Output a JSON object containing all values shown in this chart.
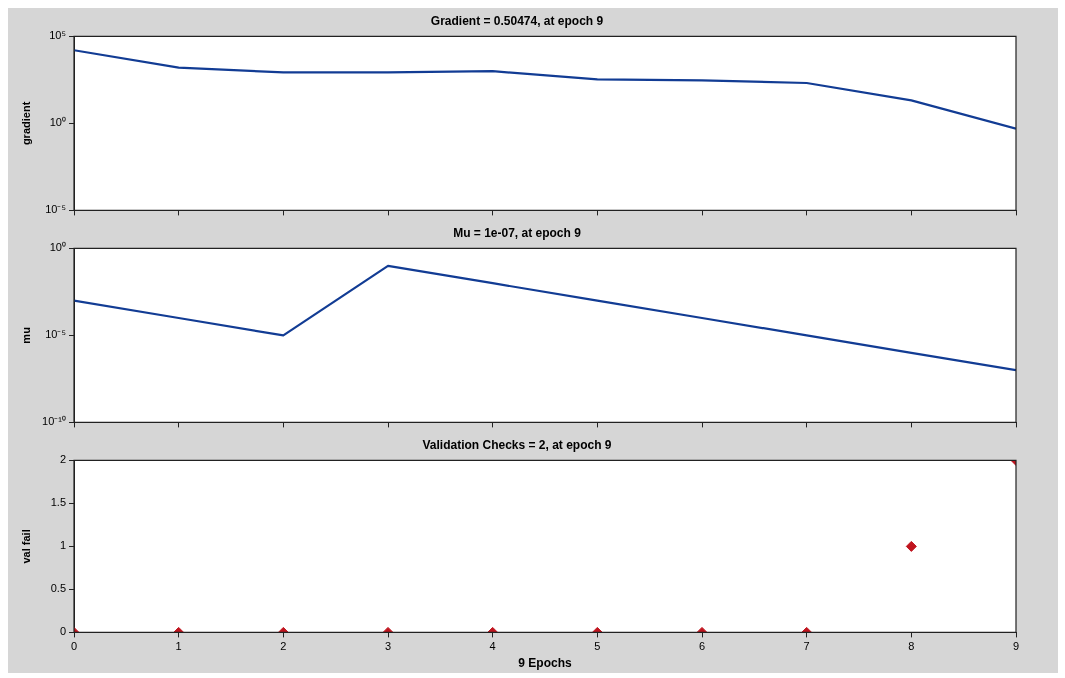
{
  "chart_data": [
    {
      "type": "line",
      "title": "Gradient = 0.50474, at epoch 9",
      "ylabel": "gradient",
      "x": [
        0,
        1,
        2,
        3,
        4,
        5,
        6,
        7,
        8,
        9
      ],
      "series": [
        {
          "color": "#123c94",
          "values": [
            16000,
            1600,
            850,
            850,
            1000,
            340,
            300,
            210,
            21,
            0.50474
          ]
        }
      ],
      "xlim": [
        0,
        9
      ],
      "xticks": [
        0,
        1,
        2,
        3,
        4,
        5,
        6,
        7,
        8,
        9
      ],
      "ylim": [
        1e-05,
        100000
      ],
      "yticks": [
        {
          "value": 1e-05,
          "label": "10⁻⁵"
        },
        {
          "value": 1,
          "label": "10⁰"
        },
        {
          "value": 100000,
          "label": "10⁵"
        }
      ],
      "log": true,
      "tick_labels": "y"
    },
    {
      "type": "line",
      "title": "Mu = 1e-07, at epoch 9",
      "ylabel": "mu",
      "x": [
        0,
        1,
        2,
        3,
        4,
        5,
        6,
        7,
        8,
        9
      ],
      "series": [
        {
          "color": "#123c94",
          "values": [
            0.001,
            0.0001,
            1e-05,
            0.1,
            0.01,
            0.001,
            0.0001,
            1e-05,
            1e-06,
            1e-07
          ]
        }
      ],
      "xlim": [
        0,
        9
      ],
      "xticks": [
        0,
        1,
        2,
        3,
        4,
        5,
        6,
        7,
        8,
        9
      ],
      "ylim": [
        1e-10,
        1
      ],
      "yticks": [
        {
          "value": 1e-10,
          "label": "10⁻¹⁰"
        },
        {
          "value": 1e-05,
          "label": "10⁻⁵"
        },
        {
          "value": 1,
          "label": "10⁰"
        }
      ],
      "log": true,
      "tick_labels": "y"
    },
    {
      "type": "scatter",
      "title": "Validation Checks = 2, at epoch 9",
      "ylabel": "val fail",
      "xlabel": "9 Epochs",
      "x": [
        0,
        1,
        2,
        3,
        4,
        5,
        6,
        7,
        8,
        9
      ],
      "series": [
        {
          "color": "#c0141e",
          "values": [
            0,
            0,
            0,
            0,
            0,
            0,
            0,
            0,
            1,
            2
          ]
        }
      ],
      "xlim": [
        0,
        9
      ],
      "xticks": [
        0,
        1,
        2,
        3,
        4,
        5,
        6,
        7,
        8,
        9
      ],
      "ylim": [
        0,
        2
      ],
      "yticks": [
        0,
        0.5,
        1,
        1.5,
        2
      ],
      "marker": "diamond"
    }
  ]
}
